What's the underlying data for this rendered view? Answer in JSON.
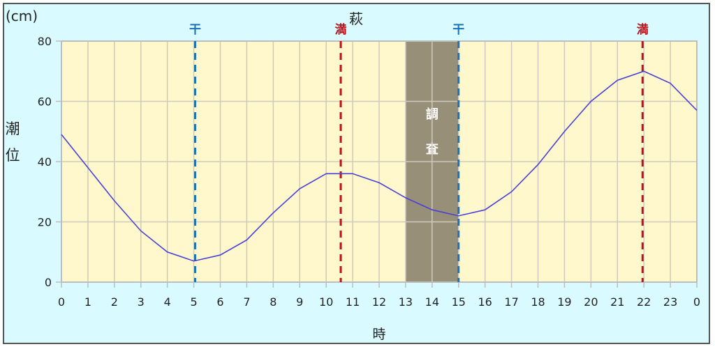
{
  "chart_data": {
    "type": "line",
    "title": "萩",
    "unit_label": "(cm)",
    "xlabel": "時",
    "ylabel": "潮位",
    "x": [
      0,
      1,
      2,
      3,
      4,
      5,
      6,
      7,
      8,
      9,
      10,
      11,
      12,
      13,
      14,
      15,
      16,
      17,
      18,
      19,
      20,
      21,
      22,
      23,
      24
    ],
    "x_tick_labels": [
      "0",
      "1",
      "2",
      "3",
      "4",
      "5",
      "6",
      "7",
      "8",
      "9",
      "10",
      "11",
      "12",
      "13",
      "14",
      "15",
      "16",
      "17",
      "18",
      "19",
      "20",
      "21",
      "22",
      "23",
      "0"
    ],
    "series": [
      {
        "name": "潮位",
        "color": "#4a3fd6",
        "values": [
          49,
          38,
          27,
          17,
          10,
          7,
          9,
          14,
          23,
          31,
          36,
          36,
          33,
          28,
          24,
          22,
          24,
          30,
          39,
          50,
          60,
          67,
          70,
          66,
          57
        ]
      }
    ],
    "ylim": [
      0,
      80
    ],
    "y_ticks": [
      0,
      20,
      40,
      60,
      80
    ],
    "xlim": [
      0,
      24
    ],
    "grid": true,
    "annotations": [
      {
        "type": "vline",
        "x": 5.05,
        "label": "干",
        "color": "#1a73b8",
        "style": "dashed"
      },
      {
        "type": "vline",
        "x": 10.55,
        "label": "満",
        "color": "#c0101a",
        "style": "dashed"
      },
      {
        "type": "vline",
        "x": 15.0,
        "label": "干",
        "color": "#1a73b8",
        "style": "dashed"
      },
      {
        "type": "vline",
        "x": 21.95,
        "label": "満",
        "color": "#c0101a",
        "style": "dashed"
      },
      {
        "type": "band",
        "x0": 13,
        "x1": 15,
        "label_lines": [
          "調",
          "査"
        ],
        "color": "#988f78"
      }
    ]
  },
  "colors": {
    "background": "#d9fbff",
    "plot_background": "#fff8cc",
    "grid": "#cfcabb",
    "axis": "#bdbdbd",
    "line": "#4a3fd6",
    "low_tide": "#1a73b8",
    "high_tide": "#c0101a",
    "band": "#988f78"
  }
}
